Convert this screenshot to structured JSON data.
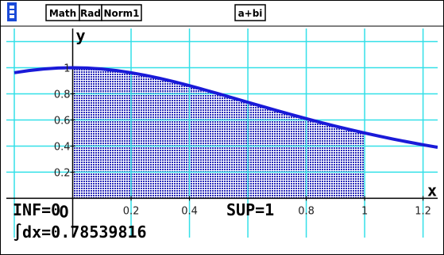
{
  "status": {
    "items": [
      "Math",
      "Rad",
      "Norm1",
      "a+bi"
    ]
  },
  "chart_data": {
    "type": "line",
    "xlabel": "x",
    "ylabel": "y",
    "origin": "O",
    "x": [
      -0.2,
      -0.15,
      -0.1,
      -0.05,
      0,
      0.05,
      0.1,
      0.15,
      0.2,
      0.25,
      0.3,
      0.35,
      0.4,
      0.45,
      0.5,
      0.55,
      0.6,
      0.65,
      0.7,
      0.75,
      0.8,
      0.85,
      0.9,
      0.95,
      1,
      1.05,
      1.1,
      1.15,
      1.2,
      1.25
    ],
    "series": [
      {
        "color": "#1a1ad8",
        "values": [
          0.9615,
          0.978,
          0.99,
          0.9975,
          1,
          0.9975,
          0.99,
          0.978,
          0.9615,
          0.9412,
          0.9174,
          0.8909,
          0.8621,
          0.8316,
          0.8,
          0.7678,
          0.7353,
          0.703,
          0.6711,
          0.64,
          0.6098,
          0.5806,
          0.5525,
          0.5256,
          0.5,
          0.4756,
          0.4525,
          0.4306,
          0.4098,
          0.3902
        ]
      }
    ],
    "shade_range": [
      0,
      1
    ],
    "shade_color": "#2a2ab8",
    "xlim": [
      -0.2,
      1.25
    ],
    "ylim": [
      -0.24,
      1.3
    ],
    "xticks": [
      0.2,
      0.4,
      0.8,
      1,
      1.2
    ],
    "yticks": [
      0.2,
      0.4,
      0.6,
      0.8,
      1
    ],
    "xgrid": [
      -0.2,
      0.2,
      0.4,
      0.6,
      0.8,
      1,
      1.2
    ],
    "ygrid": [
      0.2,
      0.4,
      0.6,
      0.8,
      1,
      1.2
    ],
    "grid_color": "#33e0e8",
    "annotations": [
      "INF=0",
      "SUP=1",
      "∫dx=0.78539816"
    ]
  }
}
